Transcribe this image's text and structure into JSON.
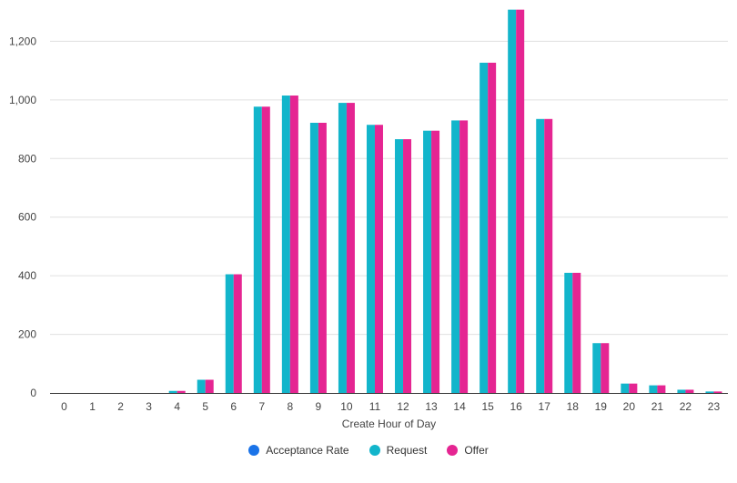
{
  "chart_data": {
    "type": "bar",
    "xlabel": "Create Hour of Day",
    "ylabel": "",
    "ylim": [
      0,
      1310
    ],
    "yticks": [
      0,
      200,
      400,
      600,
      800,
      1000,
      1200
    ],
    "ytick_labels": [
      "0",
      "200",
      "400",
      "600",
      "800",
      "1,000",
      "1,200"
    ],
    "categories": [
      "0",
      "1",
      "2",
      "3",
      "4",
      "5",
      "6",
      "7",
      "8",
      "9",
      "10",
      "11",
      "12",
      "13",
      "14",
      "15",
      "16",
      "17",
      "18",
      "19",
      "20",
      "21",
      "22",
      "23"
    ],
    "series": [
      {
        "name": "Acceptance Rate",
        "color": "#1a73e8",
        "values": [
          0,
          0,
          0,
          0,
          0,
          0,
          0,
          0,
          0,
          0,
          0,
          0,
          0,
          0,
          0,
          0,
          0,
          0,
          0,
          0,
          0,
          0,
          0,
          0
        ]
      },
      {
        "name": "Request",
        "color": "#12b5cb",
        "values": [
          0,
          0,
          0,
          0,
          7,
          45,
          405,
          977,
          1015,
          922,
          990,
          915,
          866,
          895,
          930,
          1127,
          1308,
          935,
          410,
          170,
          32,
          26,
          11,
          5
        ]
      },
      {
        "name": "Offer",
        "color": "#e52592",
        "values": [
          0,
          0,
          0,
          0,
          7,
          45,
          405,
          977,
          1015,
          922,
          990,
          915,
          866,
          895,
          930,
          1127,
          1308,
          935,
          410,
          170,
          32,
          26,
          11,
          5
        ]
      }
    ],
    "grid": true,
    "legend_position": "bottom"
  }
}
